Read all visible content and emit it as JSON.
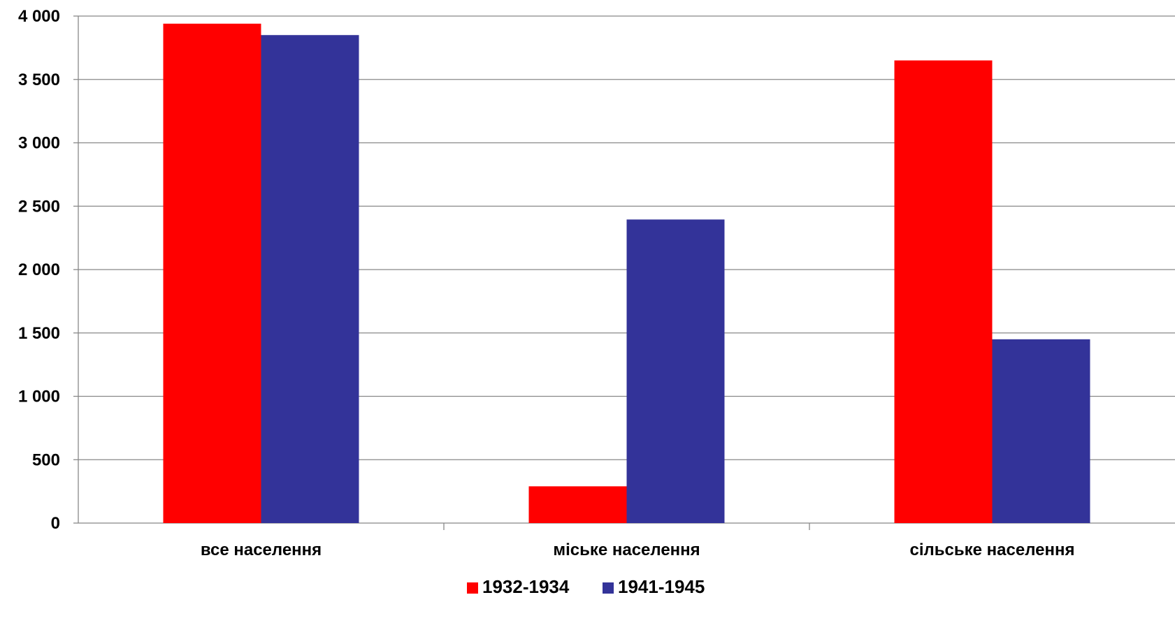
{
  "chart_data": {
    "type": "bar",
    "title": "",
    "categories": [
      "все населення",
      "міське населення",
      "сільське населення"
    ],
    "series": [
      {
        "name": "1932-1934",
        "color": "#ff0000",
        "values": [
          3940,
          290,
          3650
        ]
      },
      {
        "name": "1941-1945",
        "color": "#333399",
        "values": [
          3850,
          2395,
          1450
        ]
      }
    ],
    "y_ticks": [
      "0",
      "500",
      "1 000",
      "1 500",
      "2 000",
      "2 500",
      "3 000",
      "3 500",
      "4 000"
    ],
    "ylim": [
      0,
      4000
    ],
    "y_step": 500,
    "grid": true,
    "legend_position": "bottom-center"
  }
}
